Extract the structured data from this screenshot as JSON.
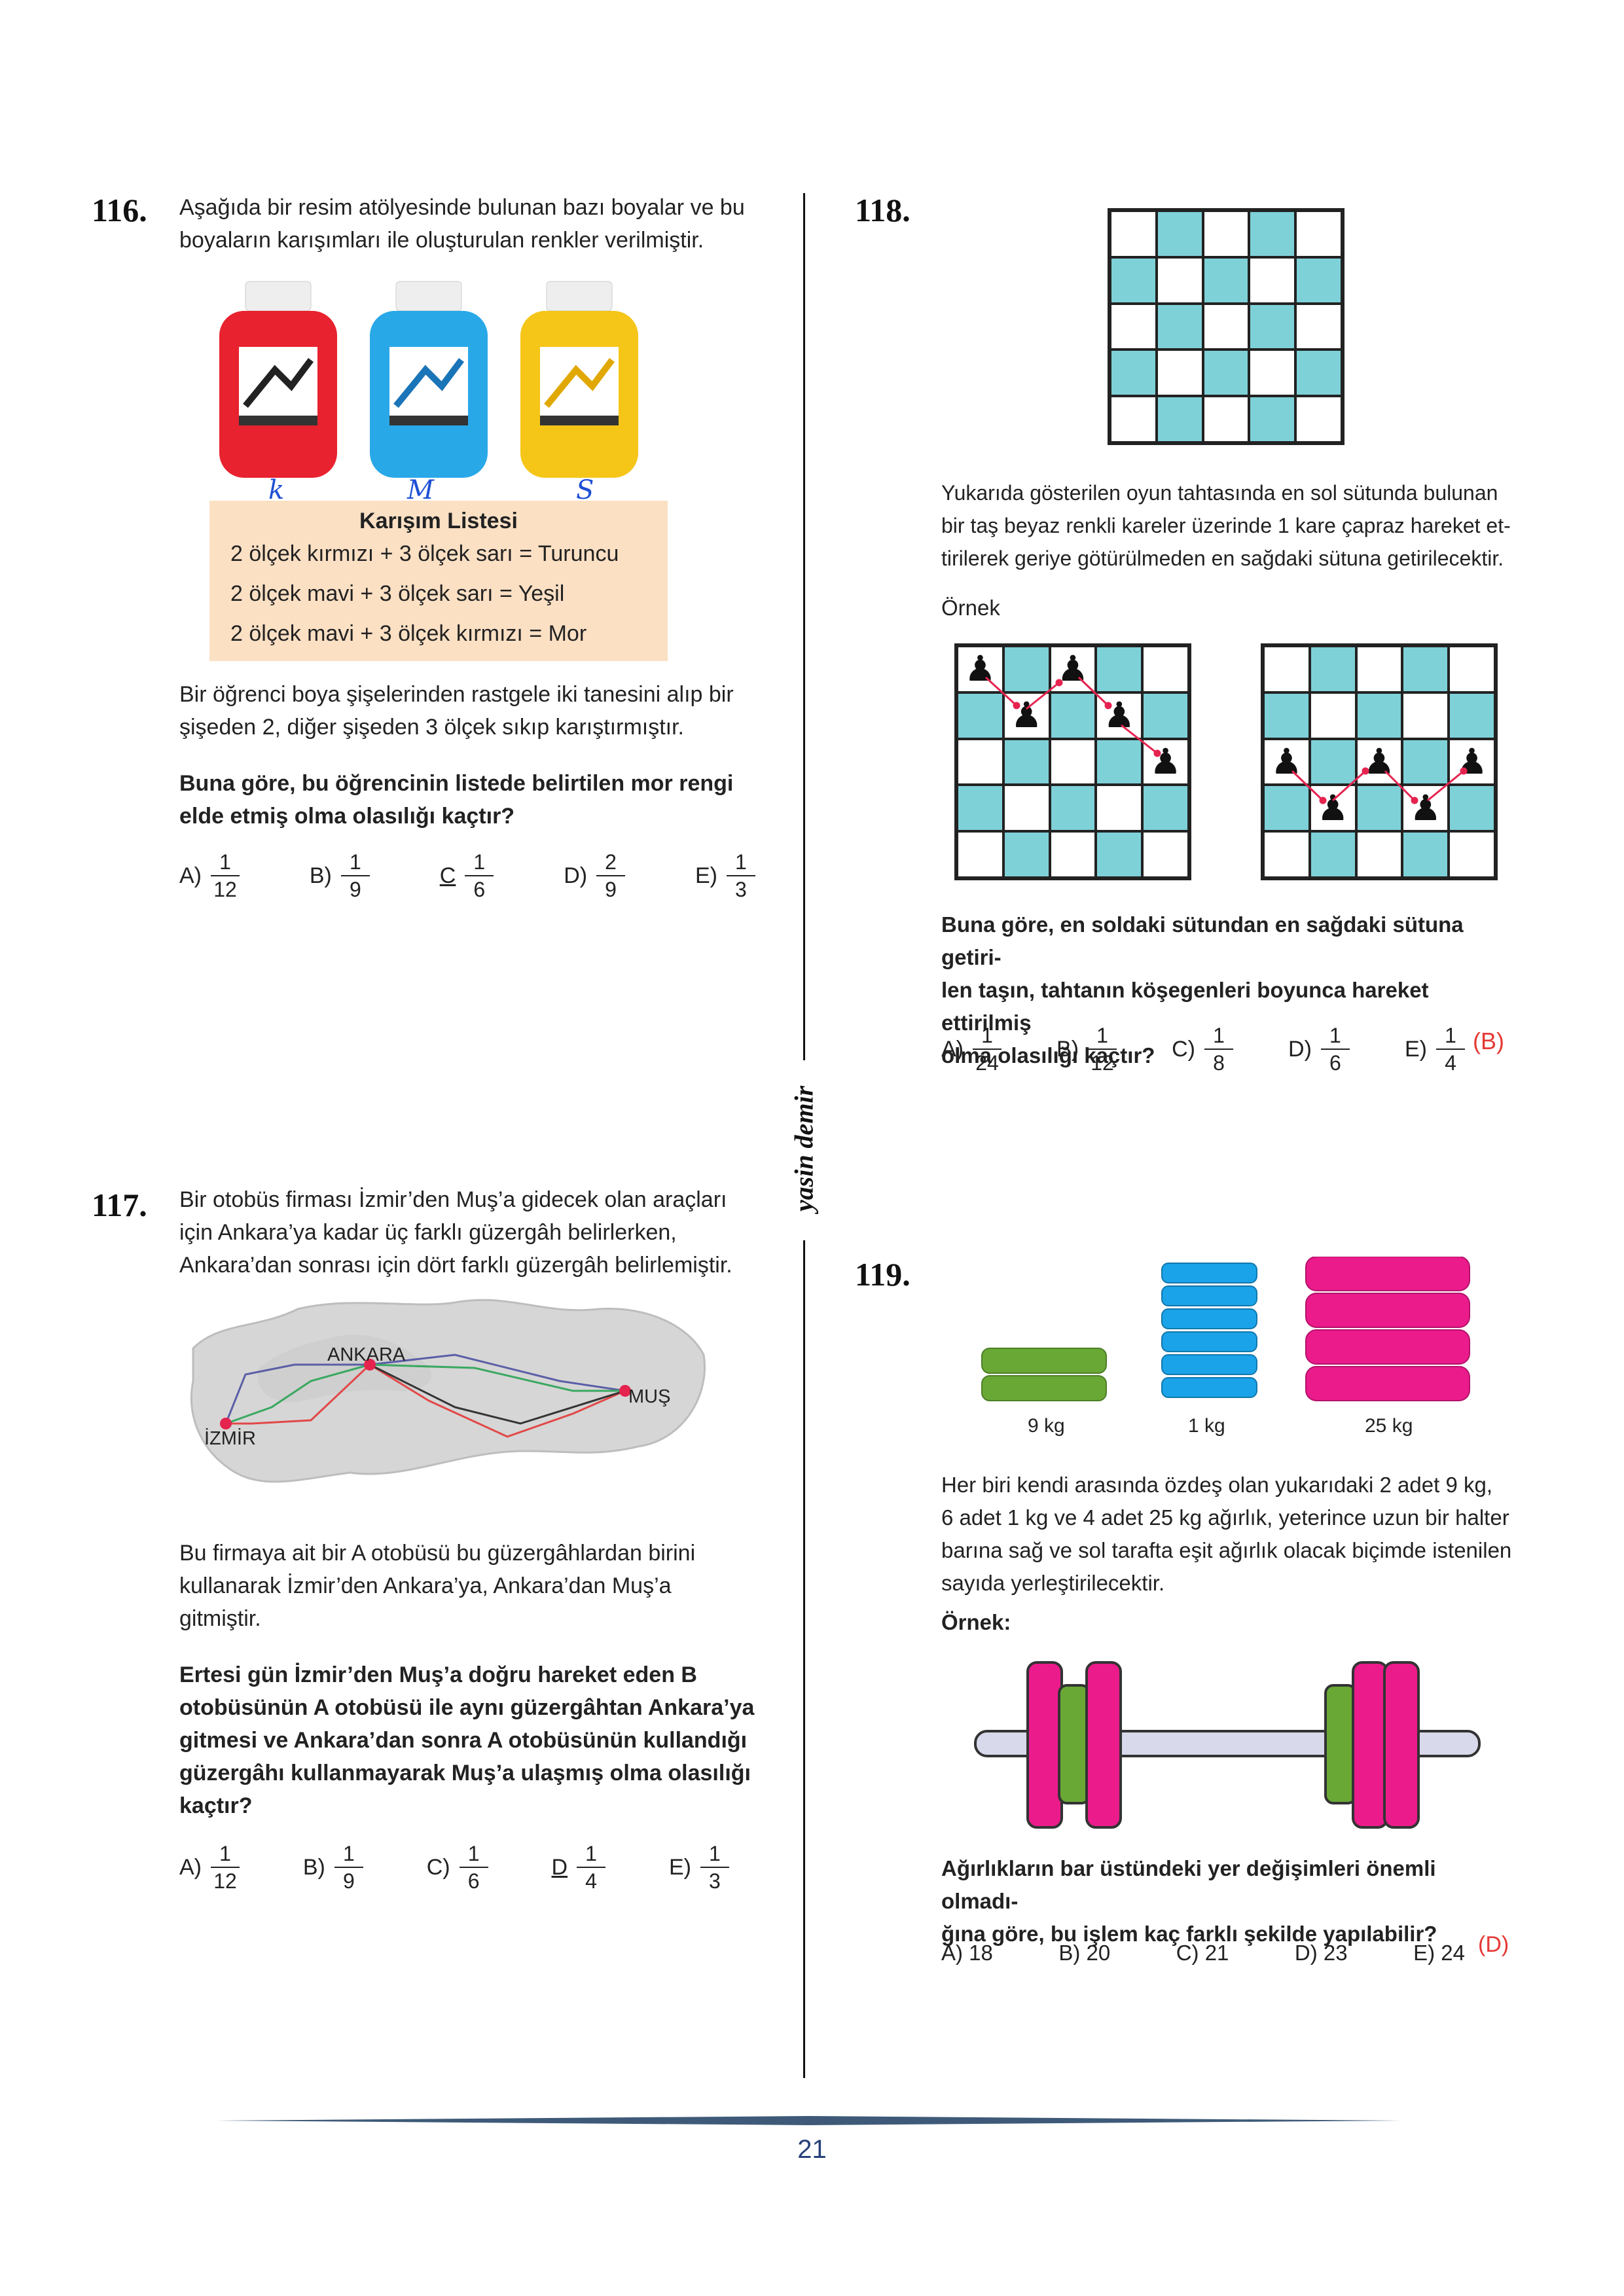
{
  "q116": {
    "number": "116.",
    "intro": [
      "Aşağıda bir resim atölyesinde bulunan bazı boyalar ve bu",
      "boyaların karışımları ile oluşturulan renkler verilmiştir."
    ],
    "bottles": [
      {
        "handwritten": "k",
        "color": "#e8222e"
      },
      {
        "handwritten": "M",
        "color": "#29a8e8"
      },
      {
        "handwritten": "S",
        "color": "#f5c518"
      }
    ],
    "list_title": "Karışım Listesi",
    "list_items": [
      "2 ölçek kırmızı + 3 ölçek sarı = Turuncu",
      "2 ölçek mavi + 3 ölçek sarı = Yeşil",
      "2 ölçek mavi + 3 ölçek kırmızı = Mor"
    ],
    "body": [
      "Bir öğrenci boya şişelerinden rastgele iki tanesini alıp bir",
      "şişeden 2, diğer şişeden 3 ölçek sıkıp karıştırmıştır."
    ],
    "question": [
      "Buna göre, bu öğrencinin listede belirtilen mor rengi",
      "elde etmiş olma olasılığı kaçtır?"
    ],
    "options": [
      {
        "label": "A)",
        "num": "1",
        "den": "12"
      },
      {
        "label": "B)",
        "num": "1",
        "den": "9"
      },
      {
        "label": "C",
        "num": "1",
        "den": "6"
      },
      {
        "label": "D)",
        "num": "2",
        "den": "9"
      },
      {
        "label": "E)",
        "num": "1",
        "den": "3"
      }
    ]
  },
  "q117": {
    "number": "117.",
    "intro": [
      "Bir otobüs firması İzmir’den Muş’a gidecek olan araçları",
      "için Ankara’ya kadar üç farklı güzergâh belirlerken,",
      "Ankara’dan sonrası için dört farklı güzergâh belirlemiştir."
    ],
    "map_labels": {
      "ankara": "ANKARA",
      "izmir": "İZMİR",
      "mus": "MUŞ"
    },
    "body": [
      "Bu firmaya ait bir A otobüsü bu güzergâhlardan birini",
      "kullanarak İzmir’den Ankara’ya, Ankara’dan Muş’a",
      "gitmiştir."
    ],
    "question": [
      "Ertesi gün İzmir’den Muş’a doğru hareket eden B",
      "otobüsünün A otobüsü ile aynı güzergâhtan Ankara’ya",
      "gitmesi ve Ankara’dan sonra A otobüsünün kullandığı",
      "güzergâhı kullanmayarak Muş’a ulaşmış olma olasılığı",
      "kaçtır?"
    ],
    "options": [
      {
        "label": "A)",
        "num": "1",
        "den": "12"
      },
      {
        "label": "B)",
        "num": "1",
        "den": "9"
      },
      {
        "label": "C)",
        "num": "1",
        "den": "6"
      },
      {
        "label": "D",
        "num": "1",
        "den": "4"
      },
      {
        "label": "E)",
        "num": "1",
        "den": "3"
      }
    ]
  },
  "q118": {
    "number": "118.",
    "intro": [
      "Yukarıda gösterilen oyun tahtasında en sol sütunda bulunan",
      "bir taş beyaz renkli kareler üzerinde 1 kare çapraz hareket et-",
      "tirilerek geriye götürülmeden en sağdaki sütuna getirilecektir."
    ],
    "example_label": "Örnek",
    "question": [
      "Buna göre, en soldaki sütundan en sağdaki sütuna getiri-",
      "len taşın, tahtanın köşegenleri boyunca hareket ettirilmiş",
      "olma olasılığı kaçtır?"
    ],
    "options": [
      {
        "label": "A)",
        "num": "1",
        "den": "24"
      },
      {
        "label": "B)",
        "num": "1",
        "den": "12"
      },
      {
        "label": "C)",
        "num": "1",
        "den": "8"
      },
      {
        "label": "D)",
        "num": "1",
        "den": "6"
      },
      {
        "label": "E)",
        "num": "1",
        "den": "4"
      }
    ],
    "answer": "(B)"
  },
  "q119": {
    "number": "119.",
    "weights": [
      {
        "label": "9 kg",
        "color": "#6aa836"
      },
      {
        "label": "1 kg",
        "color": "#1aa3e8"
      },
      {
        "label": "25 kg",
        "color": "#ec1b8c"
      }
    ],
    "intro": [
      "Her biri kendi arasında özdeş olan yukarıdaki 2 adet 9 kg,",
      "6 adet 1 kg ve 4 adet 25 kg ağırlık, yeterince uzun bir halter",
      "barına sağ ve sol tarafta eşit ağırlık olacak biçimde istenilen",
      "sayıda yerleştirilecektir."
    ],
    "example_label": "Örnek:",
    "question": [
      "Ağırlıkların bar üstündeki yer değişimleri önemli olmadı-",
      "ğına göre, bu işlem kaç farklı şekilde yapılabilir?"
    ],
    "options": [
      "A) 18",
      "B) 20",
      "C) 21",
      "D) 23",
      "E) 24"
    ],
    "answer": "(D)"
  },
  "watermark": "yasin demir",
  "page_number": "21"
}
